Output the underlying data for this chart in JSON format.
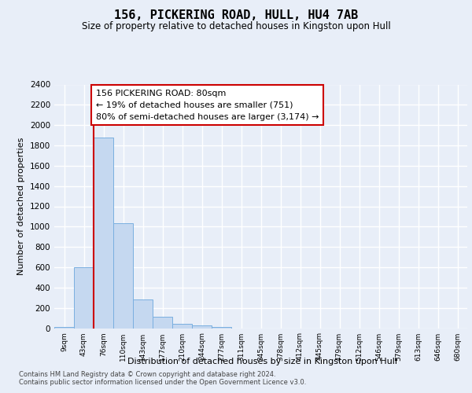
{
  "title": "156, PICKERING ROAD, HULL, HU4 7AB",
  "subtitle": "Size of property relative to detached houses in Kingston upon Hull",
  "xlabel": "Distribution of detached houses by size in Kingston upon Hull",
  "ylabel": "Number of detached properties",
  "bar_color": "#c5d8f0",
  "bar_edge_color": "#7aafe0",
  "categories": [
    "9sqm",
    "43sqm",
    "76sqm",
    "110sqm",
    "143sqm",
    "177sqm",
    "210sqm",
    "244sqm",
    "277sqm",
    "311sqm",
    "345sqm",
    "378sqm",
    "412sqm",
    "445sqm",
    "479sqm",
    "512sqm",
    "546sqm",
    "579sqm",
    "613sqm",
    "646sqm",
    "680sqm"
  ],
  "values": [
    15,
    600,
    1880,
    1030,
    280,
    110,
    40,
    25,
    15,
    0,
    0,
    0,
    0,
    0,
    0,
    0,
    0,
    0,
    0,
    0,
    0
  ],
  "ylim": [
    0,
    2400
  ],
  "yticks": [
    0,
    200,
    400,
    600,
    800,
    1000,
    1200,
    1400,
    1600,
    1800,
    2000,
    2200,
    2400
  ],
  "property_bin_index": 2,
  "annotation_line1": "156 PICKERING ROAD: 80sqm",
  "annotation_line2": "← 19% of detached houses are smaller (751)",
  "annotation_line3": "80% of semi-detached houses are larger (3,174) →",
  "red_color": "#cc0000",
  "footer_line1": "Contains HM Land Registry data © Crown copyright and database right 2024.",
  "footer_line2": "Contains public sector information licensed under the Open Government Licence v3.0.",
  "background_color": "#e8eef8",
  "grid_color": "#ffffff"
}
